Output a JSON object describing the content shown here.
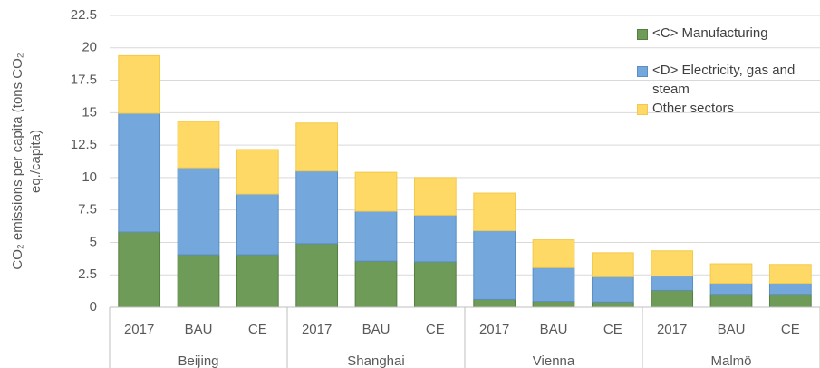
{
  "chart_data": {
    "type": "stacked_bar",
    "y_label": [
      "CO₂ emissions  per capita (tons CO₂",
      "eq./capita)"
    ],
    "categories": [
      "2017",
      "BAU",
      "CE",
      "2017",
      "BAU",
      "CE",
      "2017",
      "BAU",
      "CE",
      "2017",
      "BAU",
      "CE"
    ],
    "groups": [
      {
        "name": "Beijing",
        "size": 3
      },
      {
        "name": "Shanghai",
        "size": 3
      },
      {
        "name": "Vienna",
        "size": 3
      },
      {
        "name": "Malmö",
        "size": 3
      }
    ],
    "series": [
      {
        "name": "<C> Manufacturing",
        "color": "#6f9b58",
        "edge": "#557f41",
        "values": [
          5.8,
          4.05,
          4.05,
          4.9,
          3.55,
          3.5,
          0.6,
          0.45,
          0.4,
          1.3,
          1.0,
          1.0
        ]
      },
      {
        "name": "<D> Electricity, gas and steam",
        "color": "#74a8dc",
        "edge": "#5b8fc4",
        "values": [
          9.15,
          6.7,
          4.68,
          5.6,
          3.85,
          3.6,
          5.3,
          2.6,
          1.95,
          1.1,
          0.85,
          0.85
        ]
      },
      {
        "name": "Other sectors",
        "color": "#ffd966",
        "edge": "#f2c94c",
        "values": [
          4.45,
          3.57,
          3.43,
          3.7,
          3.0,
          2.9,
          2.9,
          2.15,
          1.85,
          1.95,
          1.5,
          1.45
        ]
      }
    ],
    "ylim": [
      0,
      22.5
    ],
    "yticks": [
      0,
      2.5,
      5,
      7.5,
      10,
      12.5,
      15,
      17.5,
      20,
      22.5
    ],
    "grid": true,
    "legend": "top-right"
  }
}
